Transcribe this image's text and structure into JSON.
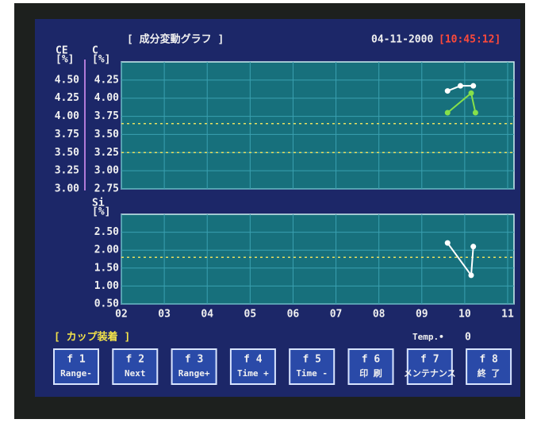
{
  "header": {
    "title": "[ 成分変動グラフ ]",
    "date": "04-11-2000",
    "time": "[10:45:12]"
  },
  "chart_data": [
    {
      "type": "line",
      "y_label": "C",
      "y_unit": "[%]",
      "y2_label": "CE",
      "y2_unit": "[%]",
      "xlim": [
        2,
        11
      ],
      "xticks": [
        2,
        3,
        4,
        5,
        6,
        7,
        8,
        9,
        10,
        11
      ],
      "ylim": [
        2.75,
        4.5
      ],
      "yticks": [
        {
          "value": 2.75,
          "label": "2.75"
        },
        {
          "value": 3.0,
          "label": "3.00"
        },
        {
          "value": 3.25,
          "label": "3.25"
        },
        {
          "value": 3.5,
          "label": "3.50"
        },
        {
          "value": 3.75,
          "label": "3.75"
        },
        {
          "value": 4.0,
          "label": "4.00"
        },
        {
          "value": 4.25,
          "label": "4.25"
        }
      ],
      "y2lim": [
        3.0,
        4.75
      ],
      "y2ticks": [
        {
          "value": 3.0,
          "label": "3.00"
        },
        {
          "value": 3.25,
          "label": "3.25"
        },
        {
          "value": 3.5,
          "label": "3.50"
        },
        {
          "value": 3.75,
          "label": "3.75"
        },
        {
          "value": 4.0,
          "label": "4.00"
        },
        {
          "value": 4.25,
          "label": "4.25"
        },
        {
          "value": 4.5,
          "label": "4.50"
        }
      ],
      "ref_lines": [
        3.25,
        3.65
      ],
      "grid": true,
      "series": [
        {
          "color": "#ffffff",
          "axis": "y2",
          "x": [
            9.6,
            9.9,
            10.2
          ],
          "values": [
            4.35,
            4.42,
            4.42
          ]
        },
        {
          "color": "#86e04a",
          "x": [
            9.6,
            10.15,
            10.25
          ],
          "values": [
            3.8,
            4.07,
            3.8
          ]
        }
      ]
    },
    {
      "type": "line",
      "y_label": "Si",
      "y_unit": "[%]",
      "xlim": [
        2,
        11
      ],
      "xticks": [
        {
          "value": 2,
          "label": "02"
        },
        {
          "value": 3,
          "label": "03"
        },
        {
          "value": 4,
          "label": "04"
        },
        {
          "value": 5,
          "label": "05"
        },
        {
          "value": 6,
          "label": "06"
        },
        {
          "value": 7,
          "label": "07"
        },
        {
          "value": 8,
          "label": "08"
        },
        {
          "value": 9,
          "label": "09"
        },
        10,
        11
      ],
      "ylim": [
        0.5,
        3.0
      ],
      "yticks": [
        {
          "value": 0.5,
          "label": "0.50"
        },
        {
          "value": 1.0,
          "label": "1.00"
        },
        {
          "value": 1.5,
          "label": "1.50"
        },
        {
          "value": 2.0,
          "label": "2.00"
        },
        {
          "value": 2.5,
          "label": "2.50"
        }
      ],
      "ref_lines": [
        1.8
      ],
      "grid": true,
      "series": [
        {
          "color": "#ffffff",
          "x": [
            9.6,
            10.15,
            10.2
          ],
          "values": [
            2.2,
            1.3,
            2.1
          ]
        }
      ]
    }
  ],
  "status": {
    "label": "[  カップ装着  ]",
    "temp_label": "Temp.•",
    "temp_value": 0
  },
  "buttons": [
    {
      "key": "f 1",
      "label": "Range-"
    },
    {
      "key": "f 2",
      "label": "Next"
    },
    {
      "key": "f 3",
      "label": "Range+"
    },
    {
      "key": "f 4",
      "label": "Time +"
    },
    {
      "key": "f 5",
      "label": "Time -"
    },
    {
      "key": "f 6",
      "label": "印 刷"
    },
    {
      "key": "f 7",
      "label": "メンテナンス"
    },
    {
      "key": "f 8",
      "label": "終 了"
    }
  ]
}
